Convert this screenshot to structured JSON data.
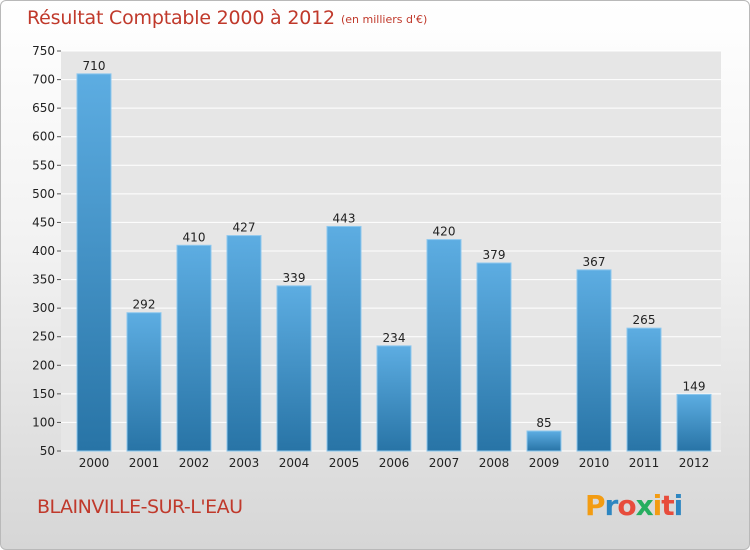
{
  "header": {
    "title": "Résultat Comptable 2000 à 2012",
    "subtitle": "(en milliers d'€)"
  },
  "footer": {
    "commune": "BLAINVILLE-SUR-L'EAU",
    "logo_letters": [
      "P",
      "r",
      "o",
      "x",
      "i",
      "t",
      "i"
    ],
    "logo_colors": [
      "#f39c12",
      "#2e86c1",
      "#e74c3c",
      "#27ae60",
      "#f39c12",
      "#e74c3c",
      "#2e86c1"
    ]
  },
  "chart_data": {
    "type": "bar",
    "title": "Résultat Comptable 2000 à 2012",
    "subtitle": "(en milliers d'€)",
    "categories": [
      "2000",
      "2001",
      "2002",
      "2003",
      "2004",
      "2005",
      "2006",
      "2007",
      "2008",
      "2009",
      "2010",
      "2011",
      "2012"
    ],
    "values": [
      710,
      292,
      410,
      427,
      339,
      443,
      234,
      420,
      379,
      85,
      367,
      265,
      149
    ],
    "ylim": [
      50,
      750
    ],
    "yticks": [
      50,
      100,
      150,
      200,
      250,
      300,
      350,
      400,
      450,
      500,
      550,
      600,
      650,
      700,
      750
    ],
    "grid": true,
    "bar_color_top": "#5dade2",
    "bar_color_bottom": "#2874a6",
    "grid_color": "#ffffff"
  }
}
